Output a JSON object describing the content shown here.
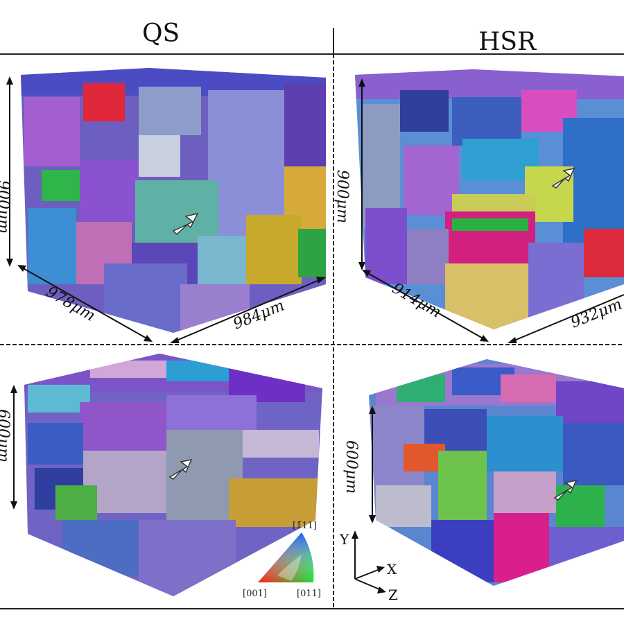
{
  "columns": {
    "left_title": "QS",
    "right_title": "HSR"
  },
  "panels": {
    "qs_top": {
      "height_label": "900μm",
      "depth_label": "978μm",
      "width_label": "984μm"
    },
    "hsr_top": {
      "height_label": "900μm",
      "depth_label": "914μm",
      "width_label": "932μm"
    },
    "qs_bottom": {
      "height_label": "600μm"
    },
    "hsr_bottom": {
      "height_label": "600μm"
    }
  },
  "ipf_legend": {
    "top_label": "[1̄11]",
    "left_label": "[001]",
    "right_label": "[011]",
    "colors": [
      "#ff1a1a",
      "#1a5cff",
      "#1adb3a"
    ]
  },
  "axes": {
    "y_label": "Y",
    "x_label": "X",
    "z_label": "Z"
  }
}
